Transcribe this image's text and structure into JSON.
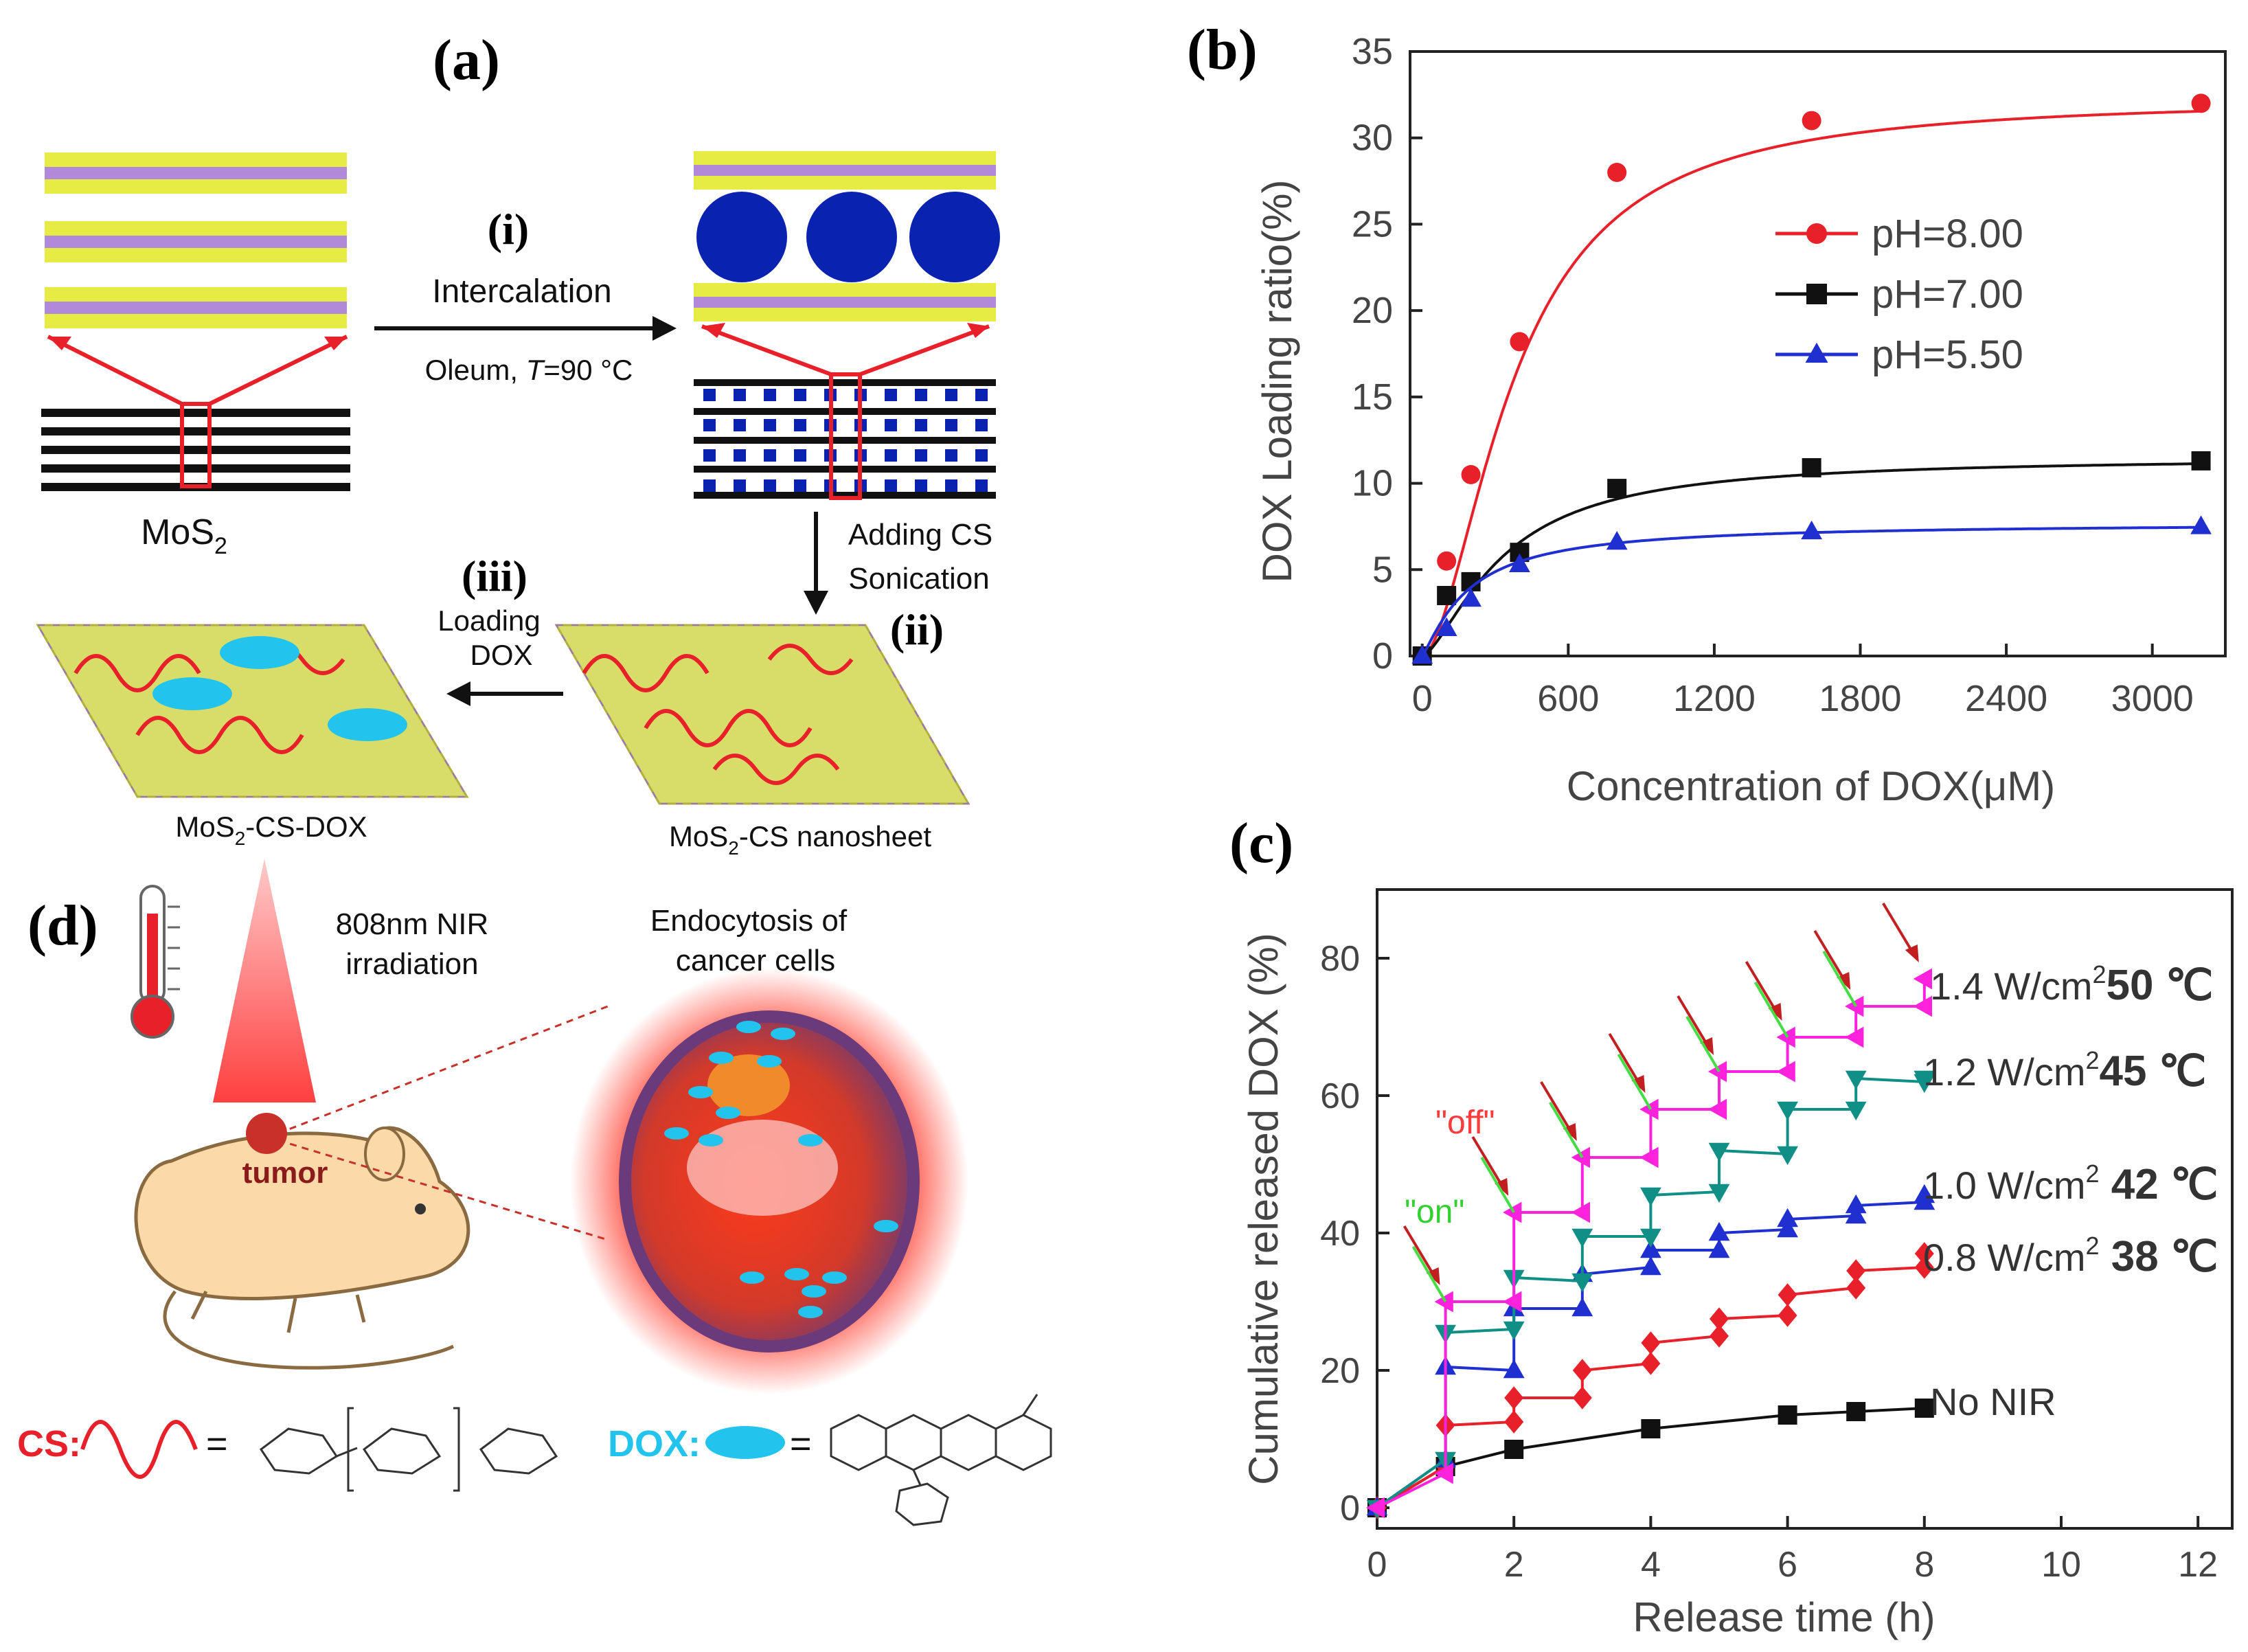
{
  "panel_labels": {
    "a": "(a)",
    "b": "(b)",
    "c": "(c)",
    "d": "(d)"
  },
  "schematic": {
    "step_i": "(i)",
    "step_i_label": "Intercalation",
    "step_i_cond_prefix": "Oleum, ",
    "step_i_cond_var": "T",
    "step_i_cond_value": "=90 °C",
    "mos2_base": "MoS",
    "mos2_sub": "2",
    "step_ii": "(ii)",
    "step_ii_line1": "Adding CS",
    "step_ii_line2": "Sonication",
    "step_iii": "(iii)",
    "step_iii_line1": "Loading",
    "step_iii_line2": "DOX",
    "product_dox_pre": "MoS",
    "product_dox_sub": "2",
    "product_dox_post": "-CS-DOX",
    "product_cs_pre": "MoS",
    "product_cs_sub": "2",
    "product_cs_post": "-CS nanosheet"
  },
  "panel_d": {
    "nir_line1": "808nm NIR",
    "nir_line2": "irradiation",
    "endo_line1": "Endocytosis of",
    "endo_line2": "cancer cells",
    "tumor_label": "tumor",
    "cs_legend": "CS:",
    "dox_legend": "DOX:",
    "equals": "="
  },
  "colors": {
    "red": "#e8202a",
    "black": "#111111",
    "blue": "#1f2fd0",
    "teal": "#0f8f86",
    "magenta": "#ff22dd",
    "cyan": "#22c4ee",
    "sulfur": "#d9e21a",
    "moly": "#9a70c8",
    "cs_blue": "#0a22b0"
  },
  "chart_data": [
    {
      "id": "b",
      "type": "scatter",
      "xlabel": "Concentration of DOX(μM)",
      "ylabel": "DOX Loading ratio(%)",
      "xlim": [
        -50,
        3300
      ],
      "ylim": [
        0,
        35
      ],
      "xticks": [
        "0",
        "600",
        "1200",
        "1800",
        "2400",
        "3000"
      ],
      "yticks": [
        "0",
        "5",
        "10",
        "15",
        "20",
        "25",
        "30",
        "35"
      ],
      "legend_position": "right",
      "series": [
        {
          "name": "pH=8.00",
          "marker": "circle",
          "color": "#e8202a",
          "x": [
            0,
            100,
            200,
            400,
            800,
            1600,
            3200
          ],
          "y": [
            0,
            5.5,
            10.5,
            18.2,
            28.0,
            31.0,
            32.0
          ]
        },
        {
          "name": "pH=7.00",
          "marker": "square",
          "color": "#111111",
          "x": [
            0,
            100,
            200,
            400,
            800,
            1600,
            3200
          ],
          "y": [
            0,
            3.5,
            4.3,
            6.0,
            9.7,
            10.9,
            11.3
          ]
        },
        {
          "name": "pH=5.50",
          "marker": "triangle",
          "color": "#1f2fd0",
          "x": [
            0,
            100,
            200,
            400,
            800,
            1600,
            3200
          ],
          "y": [
            0,
            1.6,
            3.3,
            5.3,
            6.6,
            7.2,
            7.5
          ]
        }
      ]
    },
    {
      "id": "c",
      "type": "line",
      "xlabel": "Release time (h)",
      "ylabel": "Cumulative released DOX (%)",
      "xlim": [
        0,
        12.5
      ],
      "ylim": [
        -3,
        90
      ],
      "xticks": [
        "0",
        "2",
        "4",
        "6",
        "8",
        "10",
        "12"
      ],
      "yticks": [
        "0",
        "20",
        "40",
        "60",
        "80"
      ],
      "annotations": [
        "\"off\"",
        "\"on\""
      ],
      "series": [
        {
          "name": "No NIR",
          "label_prefix": "No NIR",
          "marker": "square",
          "color": "#111111",
          "x": [
            0,
            1,
            2,
            4,
            6,
            7,
            8
          ],
          "y": [
            0,
            6,
            8.5,
            11.5,
            13.5,
            14,
            14.5
          ]
        },
        {
          "name": "0.8 W/cm2 38 ℃",
          "label_prefix": "0.8 W/cm",
          "label_power": "2",
          "label_temp": " 38 ℃",
          "marker": "diamond",
          "color": "#e8202a",
          "x": [
            0,
            1,
            1,
            2,
            2,
            3,
            3,
            4,
            4,
            5,
            5,
            6,
            6,
            7,
            7,
            8,
            8
          ],
          "y": [
            0,
            6,
            12,
            12.5,
            16,
            16,
            20,
            21,
            24,
            25,
            27.5,
            28,
            31,
            32,
            34.5,
            35,
            37
          ]
        },
        {
          "name": "1.0 W/cm2 42 ℃",
          "label_prefix": "1.0 W/cm",
          "label_power": "2",
          "label_temp": " 42 ℃",
          "marker": "triangle",
          "color": "#1f2fd0",
          "x": [
            0,
            1,
            1,
            2,
            2,
            3,
            3,
            4,
            4,
            5,
            5,
            6,
            6,
            7,
            7,
            8,
            8
          ],
          "y": [
            0,
            7,
            20.5,
            20,
            29,
            29,
            34,
            35,
            37.5,
            37.5,
            40,
            40.5,
            42,
            42.5,
            44,
            44.5,
            45.5
          ]
        },
        {
          "name": "1.2 W/cm2 45 ℃",
          "label_prefix": "1.2 W/cm",
          "label_power": "2",
          "label_temp": "45 ℃",
          "marker": "triangle-down",
          "color": "#0f8f86",
          "x": [
            0,
            1,
            1,
            2,
            2,
            3,
            3,
            4,
            4,
            5,
            5,
            6,
            6,
            7,
            7,
            8,
            8
          ],
          "y": [
            0,
            7,
            25.5,
            26,
            33.5,
            33,
            39.5,
            39.5,
            45.5,
            46,
            52,
            51.5,
            58,
            58,
            62.5,
            62,
            62.5
          ]
        },
        {
          "name": "1.4 W/cm2 50 ℃",
          "label_prefix": "1.4 W/cm",
          "label_power": "2",
          "label_temp": "50 ℃",
          "marker": "triangle-left",
          "color": "#ff22dd",
          "x": [
            0,
            1,
            1,
            2,
            2,
            3,
            3,
            4,
            4,
            5,
            5,
            6,
            6,
            7,
            7,
            8,
            8
          ],
          "y": [
            0,
            5,
            30,
            30,
            43,
            43,
            51,
            51,
            58,
            58,
            63.5,
            63.5,
            68.5,
            68.5,
            73,
            73,
            77
          ]
        }
      ],
      "toggle_times": [
        1,
        2,
        3,
        4,
        5,
        6,
        7,
        8
      ]
    }
  ]
}
